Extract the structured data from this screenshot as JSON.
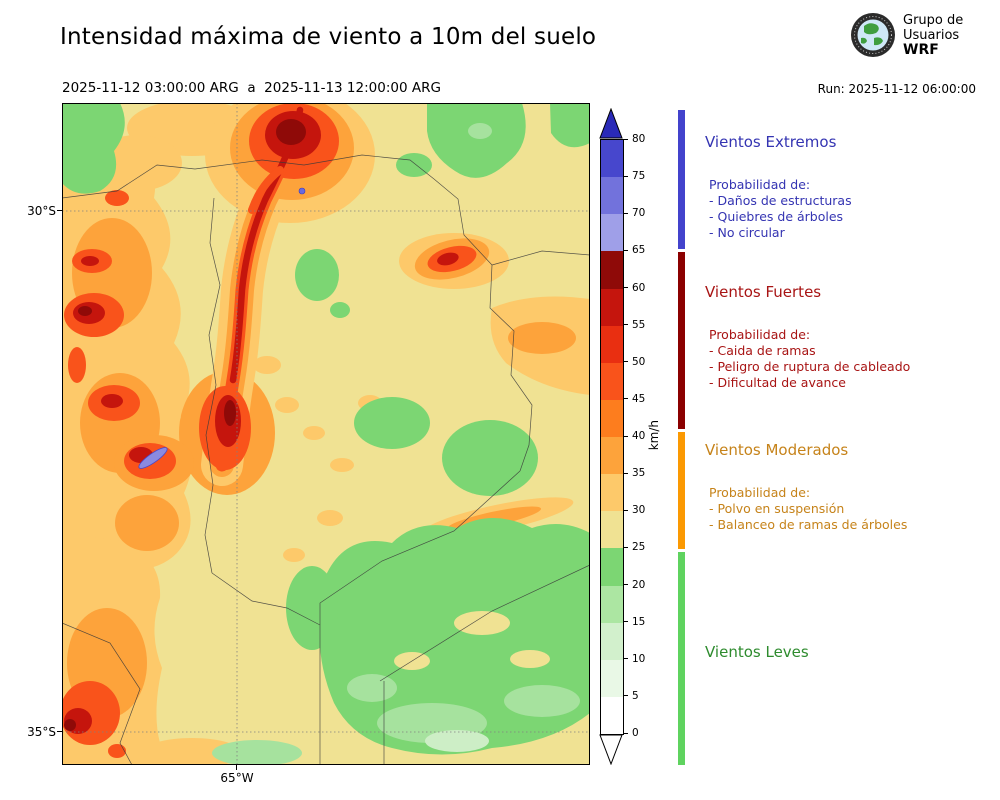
{
  "header": {
    "title": "Intensidad máxima de viento a 10m del suelo",
    "logo": {
      "line1": "Grupo de",
      "line2": "Usuarios",
      "line3": "WRF"
    },
    "period": "2025-11-12 03:00:00 ARG  a  2025-11-13 12:00:00 ARG",
    "run": "Run: 2025-11-12 06:00:00"
  },
  "map": {
    "y_axis_labels": [
      "30°S",
      "35°S"
    ],
    "x_axis_label": "65°W"
  },
  "colorbar": {
    "unit": "km/h",
    "min": 0,
    "max": 80,
    "tick_step": 5,
    "ticks": [
      0,
      5,
      10,
      15,
      20,
      25,
      30,
      35,
      40,
      45,
      50,
      55,
      60,
      65,
      70,
      75,
      80
    ],
    "segment_colors_bottom_to_top": [
      "#ffffff",
      "#e9f8e6",
      "#d2f0cc",
      "#ace6a2",
      "#7cd673",
      "#f0e293",
      "#fdc96a",
      "#fda33b",
      "#fd7d1e",
      "#f9531b",
      "#e92f11",
      "#c5150d",
      "#8f0a08",
      "#9f9fe8",
      "#7272dc",
      "#4747cd"
    ],
    "over_color": "#2a2ab8",
    "under_color": "#ffffff"
  },
  "legend": {
    "categories": [
      {
        "title": "Vientos Extremos",
        "text_color": "#3434b2",
        "strip_color": "#4343cc",
        "prob_label": "Probabilidad de:",
        "items": [
          "- Daños de estructuras",
          "- Quiebres de árboles",
          "- No circular"
        ]
      },
      {
        "title": "Vientos Fuertes",
        "text_color": "#a81414",
        "strip_color": "#8b0000",
        "prob_label": "Probabilidad de:",
        "items": [
          "- Caida de ramas",
          "- Peligro de ruptura de cableado",
          "- Dificultad de avance"
        ]
      },
      {
        "title": "Vientos Moderados",
        "text_color": "#c6831a",
        "strip_color": "#fb9902",
        "prob_label": "Probabilidad de:",
        "items": [
          "- Polvo en suspensión",
          "- Balanceo de ramas de árboles"
        ]
      },
      {
        "title": "Vientos Leves",
        "text_color": "#2e8b2e",
        "strip_color": "#5fd35f",
        "prob_label": "",
        "items": []
      }
    ]
  }
}
